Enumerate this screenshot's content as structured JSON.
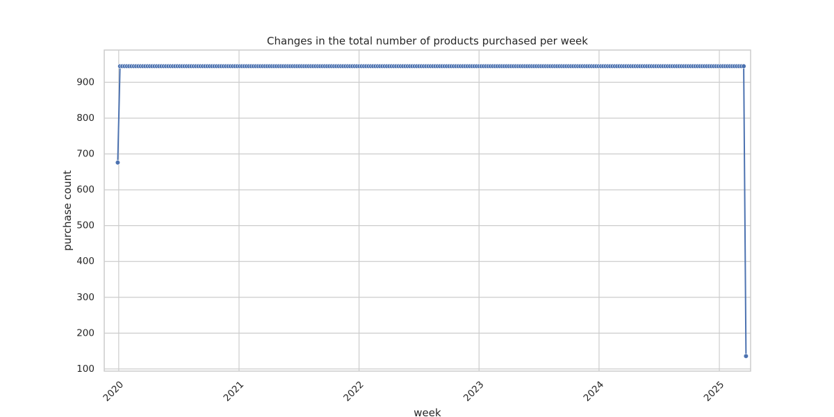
{
  "chart_data": {
    "type": "line",
    "title": "Changes in the total number of products purchased per week",
    "xlabel": "week",
    "ylabel": "purchase count",
    "x_axis": {
      "type": "date",
      "range": [
        "2019-11-18",
        "2025-04-06"
      ],
      "ticks": [
        {
          "value": "2020-01-01",
          "label": "2020"
        },
        {
          "value": "2021-01-01",
          "label": "2021"
        },
        {
          "value": "2022-01-01",
          "label": "2022"
        },
        {
          "value": "2023-01-01",
          "label": "2023"
        },
        {
          "value": "2024-01-01",
          "label": "2024"
        },
        {
          "value": "2025-01-01",
          "label": "2025"
        }
      ],
      "tick_rotation": -45
    },
    "y_axis": {
      "range": [
        94,
        990
      ],
      "ticks": [
        100,
        200,
        300,
        400,
        500,
        600,
        700,
        800,
        900
      ]
    },
    "grid": true,
    "series": [
      {
        "color": "#4c72b0",
        "marker": "circle",
        "first_point": {
          "x": "2019-12-29",
          "y": 676
        },
        "steady_segment": {
          "x_start": "2020-01-05",
          "x_end": "2025-03-16",
          "y": 945
        },
        "last_point": {
          "x": "2025-03-23",
          "y": 136
        }
      }
    ]
  }
}
